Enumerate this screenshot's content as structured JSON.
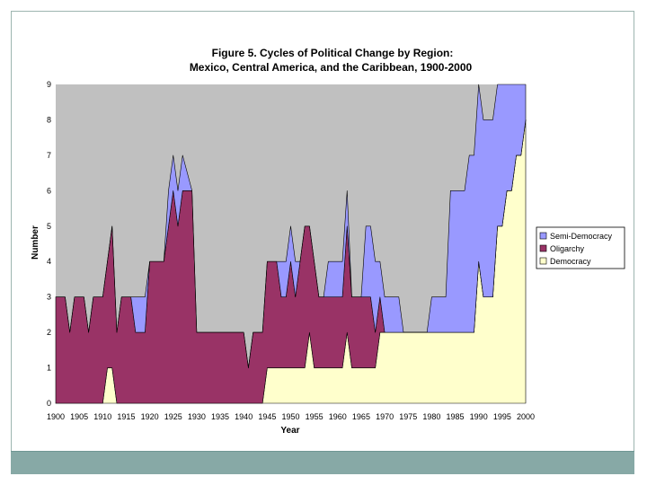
{
  "chart_data": {
    "type": "area",
    "stacked": true,
    "title": "Figure 5.  Cycles of Political Change by Region:",
    "subtitle": "Mexico, Central America, and the Caribbean, 1900-2000",
    "xlabel": "Year",
    "ylabel": "Number",
    "ylim": [
      0,
      9
    ],
    "xlim": [
      1900,
      2000
    ],
    "yticks": [
      0,
      1,
      2,
      3,
      4,
      5,
      6,
      7,
      8,
      9
    ],
    "xticks": [
      1900,
      1905,
      1910,
      1915,
      1920,
      1925,
      1930,
      1935,
      1940,
      1945,
      1950,
      1955,
      1960,
      1965,
      1970,
      1975,
      1980,
      1985,
      1990,
      1995,
      2000
    ],
    "xtick_labels": [
      "1900",
      "1905",
      "1910",
      "1915",
      "1920",
      "1925",
      "1930",
      "1935",
      "1940",
      "1945",
      "1950",
      "1955",
      "1960",
      "1965",
      "1970",
      "1975",
      "1980",
      "1985",
      "1990",
      "1995",
      "2000"
    ],
    "total_countries": 9,
    "legend_position": "right",
    "colors": {
      "plot_background": "#c0c0c0",
      "Democracy": "#ffffcc",
      "Oligarchy": "#993366",
      "Semi-Democracy": "#9999ff",
      "outline": "#000000"
    },
    "series": [
      {
        "name": "Democracy",
        "points": [
          [
            1900,
            0
          ],
          [
            1910,
            0
          ],
          [
            1911,
            1
          ],
          [
            1912,
            1
          ],
          [
            1913,
            0
          ],
          [
            1944,
            0
          ],
          [
            1945,
            1
          ],
          [
            1953,
            1
          ],
          [
            1954,
            2
          ],
          [
            1955,
            1
          ],
          [
            1961,
            1
          ],
          [
            1962,
            2
          ],
          [
            1963,
            1
          ],
          [
            1968,
            1
          ],
          [
            1969,
            2
          ],
          [
            1989,
            2
          ],
          [
            1990,
            4
          ],
          [
            1991,
            3
          ],
          [
            1993,
            3
          ],
          [
            1994,
            5
          ],
          [
            1995,
            5
          ],
          [
            1996,
            6
          ],
          [
            1997,
            6
          ],
          [
            1998,
            7
          ],
          [
            1999,
            7
          ],
          [
            2000,
            8
          ]
        ]
      },
      {
        "name": "Oligarchy",
        "points": [
          [
            1900,
            3
          ],
          [
            1902,
            3
          ],
          [
            1903,
            2
          ],
          [
            1904,
            3
          ],
          [
            1906,
            3
          ],
          [
            1907,
            2
          ],
          [
            1908,
            3
          ],
          [
            1911,
            3
          ],
          [
            1912,
            4
          ],
          [
            1913,
            2
          ],
          [
            1914,
            3
          ],
          [
            1916,
            3
          ],
          [
            1917,
            2
          ],
          [
            1919,
            2
          ],
          [
            1920,
            4
          ],
          [
            1923,
            4
          ],
          [
            1924,
            5
          ],
          [
            1925,
            6
          ],
          [
            1926,
            5
          ],
          [
            1927,
            6
          ],
          [
            1929,
            6
          ],
          [
            1930,
            2
          ],
          [
            1940,
            2
          ],
          [
            1941,
            1
          ],
          [
            1942,
            2
          ],
          [
            1944,
            2
          ],
          [
            1945,
            3
          ],
          [
            1947,
            3
          ],
          [
            1948,
            2
          ],
          [
            1949,
            2
          ],
          [
            1950,
            3
          ],
          [
            1951,
            2
          ],
          [
            1953,
            4
          ],
          [
            1954,
            3
          ],
          [
            1955,
            3
          ],
          [
            1956,
            2
          ],
          [
            1961,
            2
          ],
          [
            1962,
            3
          ],
          [
            1963,
            2
          ],
          [
            1967,
            2
          ],
          [
            1968,
            1
          ],
          [
            1969,
            1
          ],
          [
            1970,
            0
          ],
          [
            2000,
            0
          ]
        ]
      },
      {
        "name": "Semi-Democracy",
        "points": [
          [
            1900,
            0
          ],
          [
            1916,
            0
          ],
          [
            1917,
            1
          ],
          [
            1919,
            1
          ],
          [
            1920,
            0
          ],
          [
            1923,
            0
          ],
          [
            1924,
            1
          ],
          [
            1925,
            1
          ],
          [
            1926,
            1
          ],
          [
            1927,
            1
          ],
          [
            1929,
            0
          ],
          [
            1947,
            0
          ],
          [
            1948,
            1
          ],
          [
            1949,
            1
          ],
          [
            1950,
            1
          ],
          [
            1951,
            1
          ],
          [
            1952,
            0
          ],
          [
            1956,
            0
          ],
          [
            1957,
            0
          ],
          [
            1958,
            1
          ],
          [
            1961,
            1
          ],
          [
            1962,
            1
          ],
          [
            1963,
            0
          ],
          [
            1965,
            0
          ],
          [
            1966,
            2
          ],
          [
            1967,
            2
          ],
          [
            1968,
            2
          ],
          [
            1969,
            1
          ],
          [
            1973,
            1
          ],
          [
            1974,
            0
          ],
          [
            1979,
            0
          ],
          [
            1980,
            1
          ],
          [
            1982,
            1
          ],
          [
            1983,
            1
          ],
          [
            1984,
            4
          ],
          [
            1987,
            4
          ],
          [
            1988,
            5
          ],
          [
            1989,
            5
          ],
          [
            1990,
            5
          ],
          [
            1991,
            5
          ],
          [
            1993,
            5
          ],
          [
            1994,
            4
          ],
          [
            1995,
            4
          ],
          [
            1996,
            3
          ],
          [
            1997,
            3
          ],
          [
            1998,
            2
          ],
          [
            1999,
            2
          ],
          [
            2000,
            1
          ]
        ]
      }
    ],
    "legend_entries": [
      "Semi-Democracy",
      "Oligarchy",
      "Democracy"
    ]
  }
}
